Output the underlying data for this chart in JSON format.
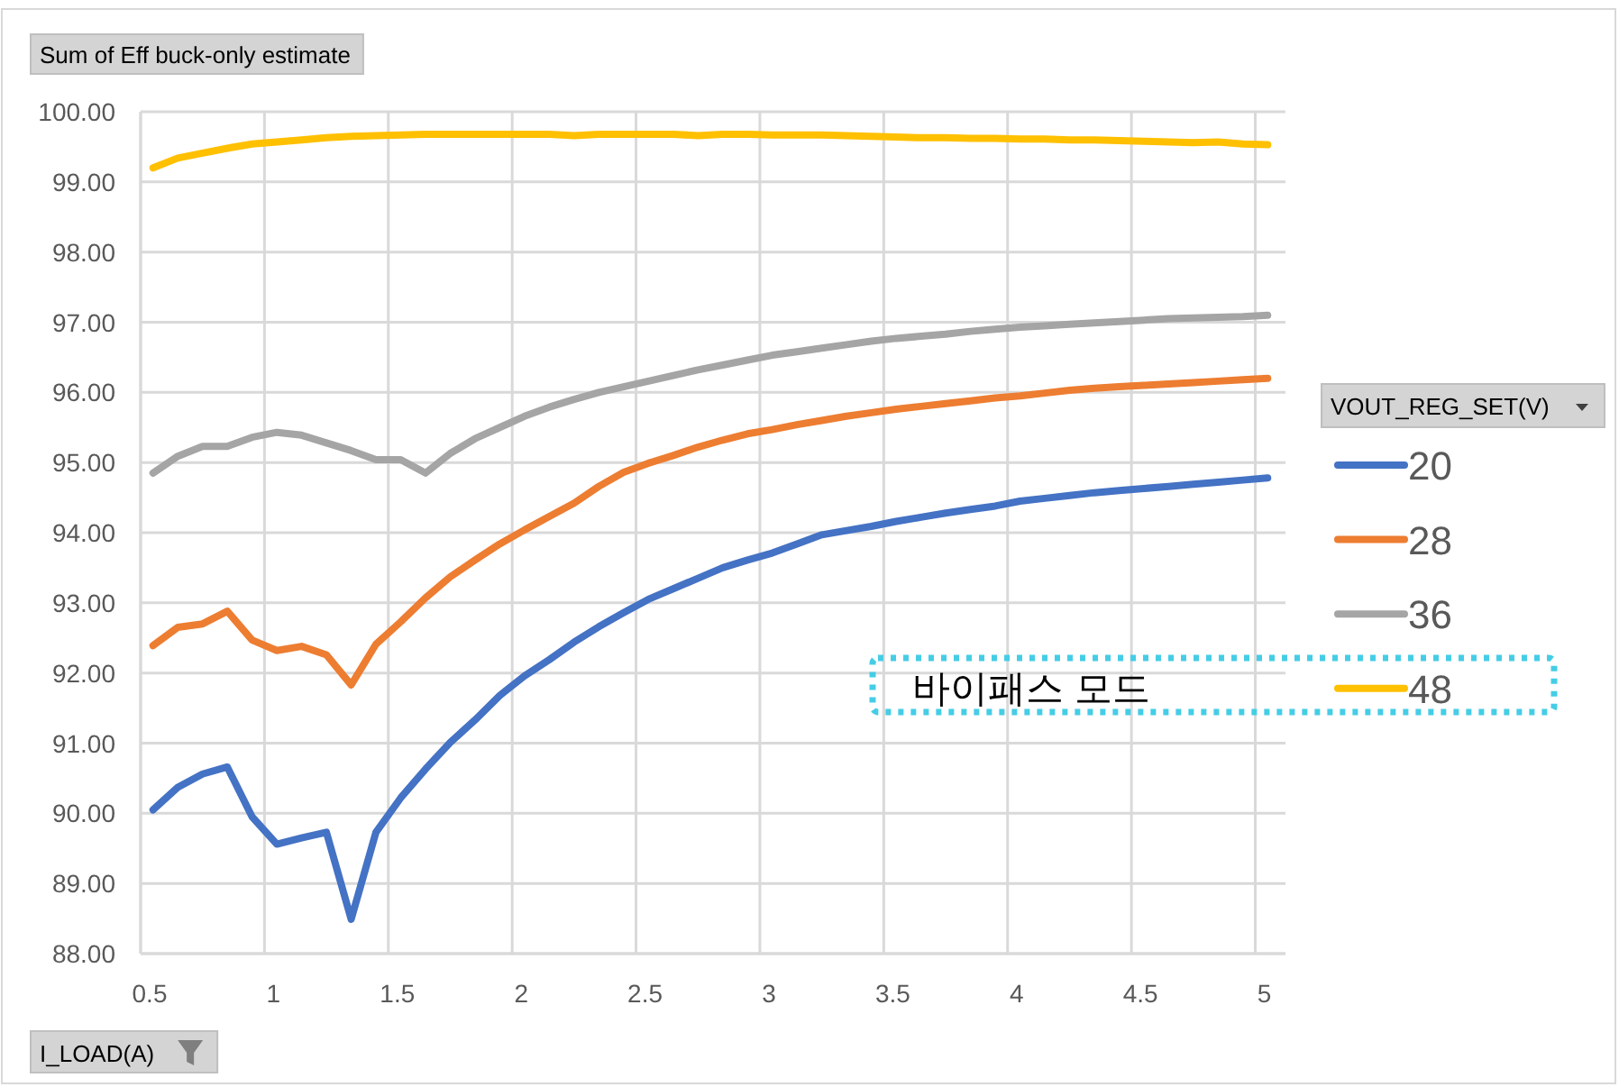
{
  "chart_data": {
    "type": "line",
    "title": "Sum of Eff buck-only estimate",
    "xlabel": "I_LOAD(A)",
    "legend_title": "VOUT_REG_SET(V)",
    "annotations": [
      "바이패스 모드"
    ],
    "x": [
      0.55,
      0.65,
      0.75,
      0.85,
      0.95,
      1.05,
      1.15,
      1.25,
      1.35,
      1.45,
      1.55,
      1.65,
      1.75,
      1.85,
      1.95,
      2.05,
      2.15,
      2.25,
      2.35,
      2.45,
      2.55,
      2.65,
      2.75,
      2.85,
      2.95,
      3.05,
      3.15,
      3.25,
      3.35,
      3.45,
      3.55,
      3.65,
      3.75,
      3.85,
      3.95,
      4.05,
      4.15,
      4.25,
      4.35,
      4.45,
      4.55,
      4.65,
      4.75,
      4.85,
      4.95,
      5.05
    ],
    "series": [
      {
        "name": "20",
        "color": "#4472c4",
        "values": [
          90.05,
          90.37,
          90.56,
          90.66,
          89.95,
          89.56,
          89.65,
          89.73,
          88.49,
          89.73,
          90.22,
          90.63,
          91.01,
          91.33,
          91.68,
          91.96,
          92.19,
          92.44,
          92.66,
          92.86,
          93.05,
          93.2,
          93.35,
          93.5,
          93.61,
          93.71,
          93.84,
          93.97,
          94.03,
          94.09,
          94.16,
          94.22,
          94.28,
          94.33,
          94.38,
          94.45,
          94.49,
          94.53,
          94.57,
          94.6,
          94.63,
          94.66,
          94.69,
          94.72,
          94.75,
          94.78
        ]
      },
      {
        "name": "28",
        "color": "#ed7d31",
        "values": [
          92.39,
          92.65,
          92.7,
          92.88,
          92.47,
          92.32,
          92.38,
          92.26,
          91.83,
          92.41,
          92.73,
          93.07,
          93.37,
          93.61,
          93.84,
          94.04,
          94.23,
          94.42,
          94.66,
          94.86,
          94.99,
          95.1,
          95.22,
          95.32,
          95.41,
          95.47,
          95.54,
          95.6,
          95.66,
          95.71,
          95.76,
          95.8,
          95.84,
          95.88,
          95.92,
          95.95,
          95.99,
          96.03,
          96.06,
          96.08,
          96.1,
          96.12,
          96.14,
          96.16,
          96.18,
          96.2
        ]
      },
      {
        "name": "36",
        "color": "#a5a5a5",
        "values": [
          94.85,
          95.09,
          95.23,
          95.23,
          95.36,
          95.43,
          95.39,
          95.28,
          95.17,
          95.04,
          95.04,
          94.85,
          95.13,
          95.34,
          95.5,
          95.66,
          95.79,
          95.9,
          96.0,
          96.08,
          96.16,
          96.24,
          96.32,
          96.39,
          96.46,
          96.53,
          96.58,
          96.63,
          96.68,
          96.73,
          96.77,
          96.8,
          96.83,
          96.87,
          96.9,
          96.93,
          96.95,
          96.97,
          96.99,
          97.01,
          97.03,
          97.05,
          97.06,
          97.07,
          97.08,
          97.1
        ]
      },
      {
        "name": "48",
        "color": "#ffc000",
        "values": [
          99.2,
          99.34,
          99.41,
          99.48,
          99.54,
          99.57,
          99.6,
          99.63,
          99.65,
          99.66,
          99.67,
          99.68,
          99.68,
          99.68,
          99.68,
          99.68,
          99.68,
          99.66,
          99.68,
          99.68,
          99.68,
          99.68,
          99.66,
          99.68,
          99.68,
          99.67,
          99.67,
          99.67,
          99.66,
          99.65,
          99.64,
          99.63,
          99.63,
          99.62,
          99.62,
          99.61,
          99.61,
          99.6,
          99.6,
          99.59,
          99.58,
          99.57,
          99.56,
          99.57,
          99.54,
          99.53
        ]
      }
    ],
    "xlim": [
      0.5,
      5.1
    ],
    "xticks": [
      0.5,
      1,
      1.5,
      2,
      2.5,
      3,
      3.5,
      4,
      4.5,
      5
    ],
    "ylim": [
      88,
      100
    ],
    "yticks": [
      {
        "value": 88,
        "label": "88.00"
      },
      {
        "value": 89,
        "label": "89.00"
      },
      {
        "value": 90,
        "label": "90.00"
      },
      {
        "value": 91,
        "label": "91.00"
      },
      {
        "value": 92,
        "label": "92.00"
      },
      {
        "value": 93,
        "label": "93.00"
      },
      {
        "value": 94,
        "label": "94.00"
      },
      {
        "value": 95,
        "label": "95.00"
      },
      {
        "value": 96,
        "label": "96.00"
      },
      {
        "value": 97,
        "label": "97.00"
      },
      {
        "value": 98,
        "label": "98.00"
      },
      {
        "value": 99,
        "label": "99.00"
      },
      {
        "value": 100,
        "label": "100.00"
      }
    ],
    "grid": true,
    "legend": "right"
  }
}
